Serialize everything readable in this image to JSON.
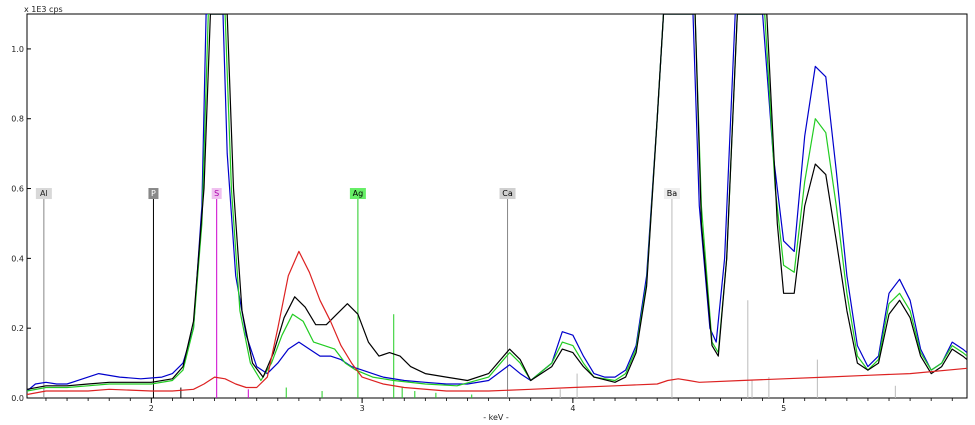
{
  "chart_data": {
    "type": "line",
    "title": "",
    "ylabel": "x 1E3 cps",
    "xlabel": "- keV -",
    "xlim": [
      1.41,
      5.87
    ],
    "ylim": [
      0,
      1.1
    ],
    "x_ticks": [
      2,
      3,
      4,
      5
    ],
    "x_tick_labels": [
      "2",
      "3",
      "4",
      "5"
    ],
    "y_ticks": [
      0.0,
      0.2,
      0.4,
      0.6,
      0.8,
      1.0
    ],
    "y_tick_labels": [
      "0.0",
      "0.2",
      "0.4",
      "0.6",
      "0.8",
      "1.0"
    ],
    "grid": false,
    "background": "#ffffff",
    "series": [
      {
        "color": "#0000cc",
        "points": [
          [
            1.41,
            0.02
          ],
          [
            1.45,
            0.04
          ],
          [
            1.5,
            0.045
          ],
          [
            1.55,
            0.04
          ],
          [
            1.6,
            0.04
          ],
          [
            1.7,
            0.06
          ],
          [
            1.75,
            0.07
          ],
          [
            1.85,
            0.06
          ],
          [
            1.95,
            0.055
          ],
          [
            2.05,
            0.06
          ],
          [
            2.1,
            0.07
          ],
          [
            2.15,
            0.1
          ],
          [
            2.2,
            0.2
          ],
          [
            2.24,
            0.55
          ],
          [
            2.26,
            1.1
          ],
          [
            2.34,
            1.1
          ],
          [
            2.36,
            0.7
          ],
          [
            2.4,
            0.35
          ],
          [
            2.45,
            0.18
          ],
          [
            2.5,
            0.09
          ],
          [
            2.55,
            0.07
          ],
          [
            2.6,
            0.1
          ],
          [
            2.65,
            0.14
          ],
          [
            2.7,
            0.16
          ],
          [
            2.75,
            0.14
          ],
          [
            2.8,
            0.12
          ],
          [
            2.85,
            0.12
          ],
          [
            2.9,
            0.11
          ],
          [
            2.95,
            0.09
          ],
          [
            3.0,
            0.08
          ],
          [
            3.1,
            0.06
          ],
          [
            3.2,
            0.05
          ],
          [
            3.3,
            0.045
          ],
          [
            3.4,
            0.04
          ],
          [
            3.5,
            0.04
          ],
          [
            3.6,
            0.05
          ],
          [
            3.7,
            0.095
          ],
          [
            3.75,
            0.07
          ],
          [
            3.8,
            0.05
          ],
          [
            3.9,
            0.1
          ],
          [
            3.95,
            0.19
          ],
          [
            4.0,
            0.18
          ],
          [
            4.05,
            0.12
          ],
          [
            4.1,
            0.07
          ],
          [
            4.15,
            0.06
          ],
          [
            4.2,
            0.06
          ],
          [
            4.25,
            0.08
          ],
          [
            4.3,
            0.15
          ],
          [
            4.35,
            0.35
          ],
          [
            4.4,
            0.8
          ],
          [
            4.43,
            1.1
          ],
          [
            4.57,
            1.1
          ],
          [
            4.6,
            0.55
          ],
          [
            4.65,
            0.2
          ],
          [
            4.68,
            0.16
          ],
          [
            4.72,
            0.4
          ],
          [
            4.77,
            1.1
          ],
          [
            4.9,
            1.1
          ],
          [
            4.95,
            0.7
          ],
          [
            5.0,
            0.45
          ],
          [
            5.05,
            0.42
          ],
          [
            5.1,
            0.75
          ],
          [
            5.15,
            0.95
          ],
          [
            5.2,
            0.92
          ],
          [
            5.25,
            0.65
          ],
          [
            5.3,
            0.35
          ],
          [
            5.35,
            0.15
          ],
          [
            5.4,
            0.09
          ],
          [
            5.45,
            0.12
          ],
          [
            5.5,
            0.3
          ],
          [
            5.55,
            0.34
          ],
          [
            5.6,
            0.28
          ],
          [
            5.65,
            0.14
          ],
          [
            5.7,
            0.08
          ],
          [
            5.75,
            0.1
          ],
          [
            5.8,
            0.16
          ],
          [
            5.85,
            0.14
          ],
          [
            5.87,
            0.13
          ]
        ]
      },
      {
        "color": "#22cc22",
        "points": [
          [
            1.41,
            0.02
          ],
          [
            1.5,
            0.03
          ],
          [
            1.6,
            0.03
          ],
          [
            1.7,
            0.035
          ],
          [
            1.8,
            0.04
          ],
          [
            1.9,
            0.04
          ],
          [
            2.0,
            0.04
          ],
          [
            2.1,
            0.05
          ],
          [
            2.15,
            0.08
          ],
          [
            2.2,
            0.2
          ],
          [
            2.24,
            0.5
          ],
          [
            2.27,
            1.1
          ],
          [
            2.35,
            1.1
          ],
          [
            2.38,
            0.6
          ],
          [
            2.42,
            0.25
          ],
          [
            2.47,
            0.1
          ],
          [
            2.52,
            0.05
          ],
          [
            2.57,
            0.1
          ],
          [
            2.62,
            0.18
          ],
          [
            2.67,
            0.24
          ],
          [
            2.72,
            0.22
          ],
          [
            2.77,
            0.16
          ],
          [
            2.82,
            0.15
          ],
          [
            2.87,
            0.14
          ],
          [
            2.92,
            0.1
          ],
          [
            2.97,
            0.08
          ],
          [
            3.05,
            0.06
          ],
          [
            3.15,
            0.05
          ],
          [
            3.3,
            0.04
          ],
          [
            3.45,
            0.035
          ],
          [
            3.6,
            0.06
          ],
          [
            3.7,
            0.13
          ],
          [
            3.75,
            0.1
          ],
          [
            3.8,
            0.05
          ],
          [
            3.9,
            0.1
          ],
          [
            3.95,
            0.16
          ],
          [
            4.0,
            0.15
          ],
          [
            4.05,
            0.1
          ],
          [
            4.1,
            0.06
          ],
          [
            4.2,
            0.05
          ],
          [
            4.25,
            0.07
          ],
          [
            4.3,
            0.14
          ],
          [
            4.35,
            0.33
          ],
          [
            4.4,
            0.8
          ],
          [
            4.43,
            1.1
          ],
          [
            4.58,
            1.1
          ],
          [
            4.61,
            0.55
          ],
          [
            4.66,
            0.16
          ],
          [
            4.69,
            0.13
          ],
          [
            4.73,
            0.4
          ],
          [
            4.78,
            1.1
          ],
          [
            4.91,
            1.1
          ],
          [
            4.96,
            0.6
          ],
          [
            5.0,
            0.38
          ],
          [
            5.05,
            0.36
          ],
          [
            5.1,
            0.62
          ],
          [
            5.15,
            0.8
          ],
          [
            5.2,
            0.76
          ],
          [
            5.25,
            0.55
          ],
          [
            5.3,
            0.3
          ],
          [
            5.35,
            0.12
          ],
          [
            5.4,
            0.08
          ],
          [
            5.45,
            0.11
          ],
          [
            5.5,
            0.27
          ],
          [
            5.55,
            0.3
          ],
          [
            5.6,
            0.25
          ],
          [
            5.65,
            0.13
          ],
          [
            5.7,
            0.08
          ],
          [
            5.75,
            0.1
          ],
          [
            5.8,
            0.15
          ],
          [
            5.85,
            0.13
          ],
          [
            5.87,
            0.12
          ]
        ]
      },
      {
        "color": "#000000",
        "points": [
          [
            1.41,
            0.025
          ],
          [
            1.5,
            0.035
          ],
          [
            1.6,
            0.035
          ],
          [
            1.7,
            0.04
          ],
          [
            1.8,
            0.045
          ],
          [
            1.9,
            0.045
          ],
          [
            2.0,
            0.045
          ],
          [
            2.1,
            0.055
          ],
          [
            2.15,
            0.09
          ],
          [
            2.2,
            0.22
          ],
          [
            2.25,
            0.6
          ],
          [
            2.28,
            1.1
          ],
          [
            2.36,
            1.1
          ],
          [
            2.39,
            0.6
          ],
          [
            2.43,
            0.25
          ],
          [
            2.48,
            0.1
          ],
          [
            2.53,
            0.06
          ],
          [
            2.58,
            0.13
          ],
          [
            2.63,
            0.23
          ],
          [
            2.68,
            0.29
          ],
          [
            2.73,
            0.26
          ],
          [
            2.78,
            0.21
          ],
          [
            2.83,
            0.21
          ],
          [
            2.88,
            0.24
          ],
          [
            2.93,
            0.27
          ],
          [
            2.98,
            0.24
          ],
          [
            3.03,
            0.16
          ],
          [
            3.08,
            0.12
          ],
          [
            3.13,
            0.13
          ],
          [
            3.18,
            0.12
          ],
          [
            3.23,
            0.09
          ],
          [
            3.3,
            0.07
          ],
          [
            3.4,
            0.06
          ],
          [
            3.5,
            0.05
          ],
          [
            3.6,
            0.07
          ],
          [
            3.7,
            0.14
          ],
          [
            3.75,
            0.11
          ],
          [
            3.8,
            0.05
          ],
          [
            3.9,
            0.09
          ],
          [
            3.95,
            0.14
          ],
          [
            4.0,
            0.13
          ],
          [
            4.05,
            0.09
          ],
          [
            4.1,
            0.06
          ],
          [
            4.2,
            0.045
          ],
          [
            4.25,
            0.06
          ],
          [
            4.3,
            0.13
          ],
          [
            4.35,
            0.32
          ],
          [
            4.4,
            0.8
          ],
          [
            4.43,
            1.1
          ],
          [
            4.58,
            1.1
          ],
          [
            4.61,
            0.5
          ],
          [
            4.66,
            0.15
          ],
          [
            4.69,
            0.12
          ],
          [
            4.73,
            0.4
          ],
          [
            4.78,
            1.1
          ],
          [
            4.92,
            1.1
          ],
          [
            4.97,
            0.5
          ],
          [
            5.0,
            0.3
          ],
          [
            5.05,
            0.3
          ],
          [
            5.1,
            0.55
          ],
          [
            5.15,
            0.67
          ],
          [
            5.2,
            0.64
          ],
          [
            5.25,
            0.45
          ],
          [
            5.3,
            0.25
          ],
          [
            5.35,
            0.1
          ],
          [
            5.4,
            0.08
          ],
          [
            5.45,
            0.1
          ],
          [
            5.5,
            0.24
          ],
          [
            5.55,
            0.28
          ],
          [
            5.6,
            0.23
          ],
          [
            5.65,
            0.12
          ],
          [
            5.7,
            0.07
          ],
          [
            5.75,
            0.09
          ],
          [
            5.8,
            0.14
          ],
          [
            5.85,
            0.12
          ],
          [
            5.87,
            0.11
          ]
        ]
      },
      {
        "color": "#dd2222",
        "points": [
          [
            1.41,
            0.01
          ],
          [
            1.5,
            0.02
          ],
          [
            1.6,
            0.02
          ],
          [
            1.7,
            0.02
          ],
          [
            1.8,
            0.025
          ],
          [
            2.0,
            0.02
          ],
          [
            2.1,
            0.02
          ],
          [
            2.2,
            0.025
          ],
          [
            2.25,
            0.04
          ],
          [
            2.3,
            0.06
          ],
          [
            2.35,
            0.055
          ],
          [
            2.4,
            0.04
          ],
          [
            2.45,
            0.03
          ],
          [
            2.5,
            0.03
          ],
          [
            2.55,
            0.06
          ],
          [
            2.6,
            0.2
          ],
          [
            2.65,
            0.35
          ],
          [
            2.7,
            0.42
          ],
          [
            2.75,
            0.36
          ],
          [
            2.8,
            0.28
          ],
          [
            2.85,
            0.22
          ],
          [
            2.9,
            0.15
          ],
          [
            2.95,
            0.1
          ],
          [
            3.0,
            0.06
          ],
          [
            3.1,
            0.04
          ],
          [
            3.2,
            0.03
          ],
          [
            3.4,
            0.02
          ],
          [
            3.6,
            0.02
          ],
          [
            3.8,
            0.025
          ],
          [
            4.0,
            0.03
          ],
          [
            4.2,
            0.035
          ],
          [
            4.4,
            0.04
          ],
          [
            4.45,
            0.05
          ],
          [
            4.5,
            0.055
          ],
          [
            4.55,
            0.05
          ],
          [
            4.6,
            0.045
          ],
          [
            4.8,
            0.05
          ],
          [
            5.0,
            0.055
          ],
          [
            5.2,
            0.06
          ],
          [
            5.4,
            0.065
          ],
          [
            5.6,
            0.07
          ],
          [
            5.87,
            0.085
          ]
        ]
      }
    ],
    "element_markers": [
      {
        "label": "Al",
        "x": 1.49,
        "color": "#888888",
        "tag_bg": "#d8d8d8",
        "tag_fg": "#222222"
      },
      {
        "label": "P",
        "x": 2.01,
        "color": "#000000",
        "tag_bg": "#888888",
        "tag_fg": "#ffffff"
      },
      {
        "label": "S",
        "x": 2.31,
        "color": "#cc00cc",
        "tag_bg": "#f0c0f0",
        "tag_fg": "#aa00aa"
      },
      {
        "label": "Ag",
        "x": 2.98,
        "color": "#22cc22",
        "tag_bg": "#66ee66",
        "tag_fg": "#000000"
      },
      {
        "label": "Ca",
        "x": 3.69,
        "color": "#888888",
        "tag_bg": "#d0d0d0",
        "tag_fg": "#000000"
      },
      {
        "label": "Ba",
        "x": 4.47,
        "color": "#bbbbbb",
        "tag_bg": "#eeeeee",
        "tag_fg": "#000000"
      }
    ],
    "element_marker_level": 0.57,
    "minor_lines": [
      {
        "x": 2.14,
        "h": 0.03,
        "color": "#000000"
      },
      {
        "x": 2.46,
        "h": 0.025,
        "color": "#cc00cc"
      },
      {
        "x": 2.64,
        "h": 0.03,
        "color": "#22cc22"
      },
      {
        "x": 2.81,
        "h": 0.02,
        "color": "#22cc22"
      },
      {
        "x": 3.15,
        "h": 0.24,
        "color": "#22cc22"
      },
      {
        "x": 3.19,
        "h": 0.03,
        "color": "#22cc22"
      },
      {
        "x": 3.25,
        "h": 0.02,
        "color": "#22cc22"
      },
      {
        "x": 3.35,
        "h": 0.015,
        "color": "#22cc22"
      },
      {
        "x": 3.52,
        "h": 0.01,
        "color": "#22cc22"
      },
      {
        "x": 3.94,
        "h": 0.025,
        "color": "#bbbbbb"
      },
      {
        "x": 4.02,
        "h": 0.07,
        "color": "#bbbbbb"
      },
      {
        "x": 4.83,
        "h": 0.28,
        "color": "#bbbbbb"
      },
      {
        "x": 4.85,
        "h": 0.05,
        "color": "#bbbbbb"
      },
      {
        "x": 4.93,
        "h": 0.06,
        "color": "#bbbbbb"
      },
      {
        "x": 5.16,
        "h": 0.11,
        "color": "#bbbbbb"
      },
      {
        "x": 5.53,
        "h": 0.035,
        "color": "#bbbbbb"
      }
    ]
  }
}
